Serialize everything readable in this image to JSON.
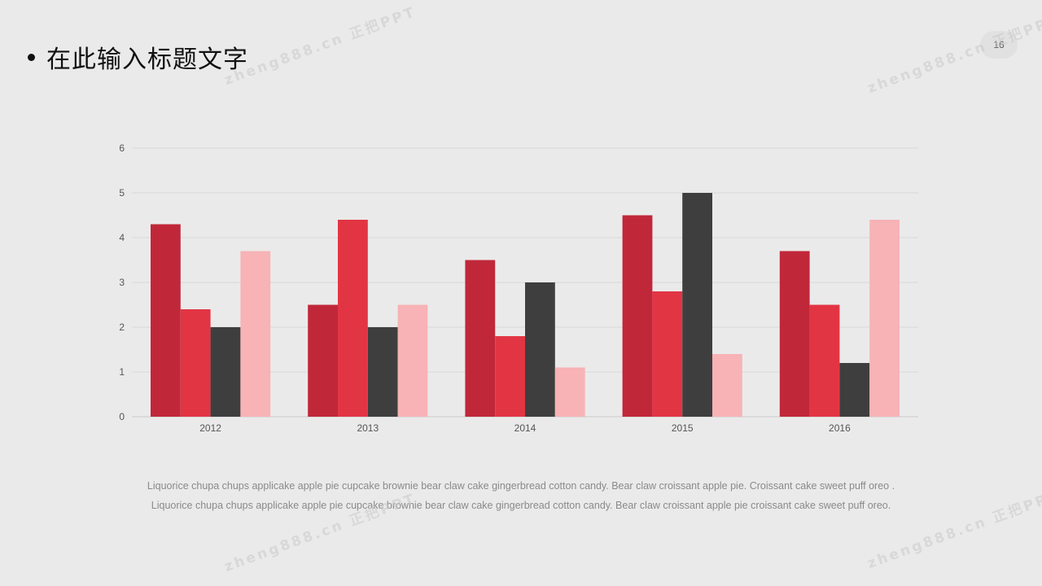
{
  "slide": {
    "title": "在此输入标题文字",
    "page_number": "16",
    "captions": [
      "Liquorice chupa chups applicake apple pie cupcake brownie bear claw  cake gingerbread  cotton candy. Bear claw croissant apple pie. Croissant cake sweet puff oreo .",
      "Liquorice chupa chups applicake apple pie cupcake brownie bear claw  cake gingerbread  cotton candy. Bear claw croissant apple pie croissant cake sweet puff oreo."
    ],
    "watermark": "zheng888.cn 正把PPT"
  },
  "chart_data": {
    "type": "bar",
    "categories": [
      "2012",
      "2013",
      "2014",
      "2015",
      "2016"
    ],
    "series": [
      {
        "values": [
          4.3,
          2.5,
          3.5,
          4.5,
          3.7
        ],
        "color": "#c0283a"
      },
      {
        "values": [
          2.4,
          4.4,
          1.8,
          2.8,
          2.5
        ],
        "color": "#e23544"
      },
      {
        "values": [
          2.0,
          2.0,
          3.0,
          5.0,
          1.2
        ],
        "color": "#3f3e3f"
      },
      {
        "values": [
          3.7,
          2.5,
          1.1,
          1.4,
          4.4
        ],
        "color": "#f7b3b5"
      }
    ],
    "title": "",
    "xlabel": "",
    "ylabel": "",
    "ylim": [
      0,
      6
    ],
    "yticks": [
      0,
      1,
      2,
      3,
      4,
      5,
      6
    ],
    "grid": true,
    "legend": "none"
  }
}
